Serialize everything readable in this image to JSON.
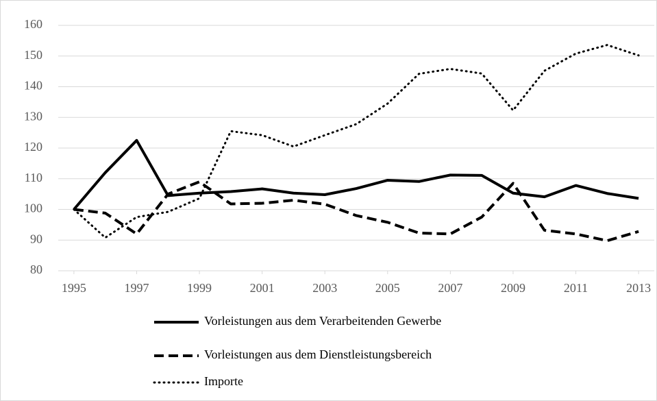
{
  "chart_data": {
    "type": "line",
    "x": [
      1995,
      1996,
      1997,
      1998,
      1999,
      2000,
      2001,
      2002,
      2003,
      2004,
      2005,
      2006,
      2007,
      2008,
      2009,
      2010,
      2011,
      2012,
      2013
    ],
    "xlim": [
      1994.5,
      2013.5
    ],
    "xticks": [
      1995,
      1997,
      1999,
      2001,
      2003,
      2005,
      2007,
      2009,
      2011,
      2013
    ],
    "ylim": [
      80,
      160
    ],
    "yticks": [
      80,
      90,
      100,
      110,
      120,
      130,
      140,
      150,
      160
    ],
    "grid": true,
    "legend": "bottom",
    "series": [
      {
        "name": "Vorleistungen aus dem Verarbeitenden Gewerbe",
        "color": "#000000",
        "dash": "solid",
        "values": [
          100,
          112,
          122.5,
          104.5,
          105.3,
          105.8,
          106.7,
          105.3,
          104.8,
          106.8,
          109.5,
          109.1,
          111.2,
          111.1,
          105.3,
          104.1,
          107.8,
          105.2,
          103.6
        ]
      },
      {
        "name": "Vorleistungen aus dem Dienstleistungsbereich",
        "color": "#000000",
        "dash": "dashed",
        "values": [
          100,
          98.8,
          92,
          105,
          109,
          101.8,
          102,
          103,
          101.7,
          98,
          95.8,
          92.3,
          92,
          97.5,
          108.5,
          93.2,
          92,
          89.8,
          92.8
        ]
      },
      {
        "name": "Importe",
        "color": "#000000",
        "dash": "dotted",
        "values": [
          100,
          90.8,
          97.5,
          99.2,
          103.6,
          125.5,
          124.2,
          120.5,
          124.2,
          127.8,
          134.5,
          144.2,
          145.8,
          144.3,
          132.3,
          145.2,
          150.8,
          153.6,
          150.2
        ]
      }
    ]
  }
}
